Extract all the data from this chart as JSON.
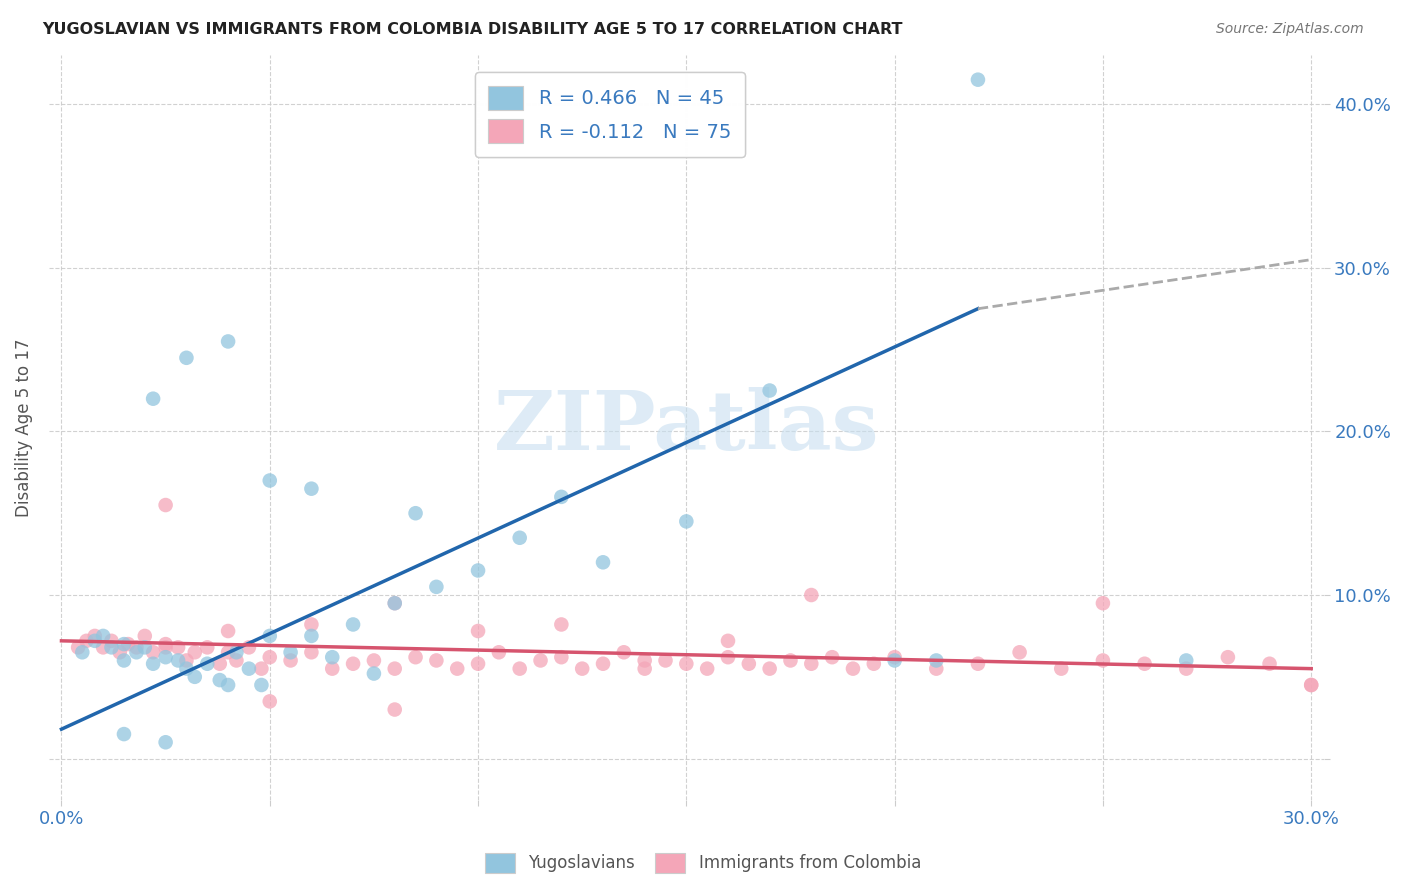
{
  "title": "YUGOSLAVIAN VS IMMIGRANTS FROM COLOMBIA DISABILITY AGE 5 TO 17 CORRELATION CHART",
  "source": "Source: ZipAtlas.com",
  "ylabel": "Disability Age 5 to 17",
  "x_min": 0.0,
  "x_max": 0.3,
  "y_min": -0.025,
  "y_max": 0.43,
  "color_blue": "#92c5de",
  "color_pink": "#f4a6b8",
  "line_blue": "#2166ac",
  "line_pink": "#d6546e",
  "dash_color": "#aaaaaa",
  "R_blue": 0.466,
  "N_blue": 45,
  "R_pink": -0.112,
  "N_pink": 75,
  "watermark_text": "ZIPatlas",
  "watermark_color": "#c8dff0",
  "legend_label_blue": "R = 0.466   N = 45",
  "legend_label_pink": "R = -0.112   N = 75",
  "legend_bottom_blue": "Yugoslavians",
  "legend_bottom_pink": "Immigrants from Colombia",
  "blue_line_x0": 0.0,
  "blue_line_y0": 0.018,
  "blue_line_x1": 0.22,
  "blue_line_y1": 0.275,
  "blue_line_x2": 0.3,
  "blue_line_y2": 0.305,
  "pink_line_x0": 0.0,
  "pink_line_y0": 0.072,
  "pink_line_x1": 0.3,
  "pink_line_y1": 0.055,
  "blue_x": [
    0.005,
    0.008,
    0.01,
    0.012,
    0.015,
    0.015,
    0.018,
    0.02,
    0.022,
    0.025,
    0.028,
    0.03,
    0.032,
    0.035,
    0.038,
    0.04,
    0.042,
    0.045,
    0.048,
    0.05,
    0.055,
    0.06,
    0.065,
    0.07,
    0.075,
    0.08,
    0.085,
    0.09,
    0.1,
    0.11,
    0.12,
    0.022,
    0.03,
    0.04,
    0.05,
    0.06,
    0.13,
    0.15,
    0.17,
    0.2,
    0.21,
    0.22,
    0.27,
    0.015,
    0.025
  ],
  "blue_y": [
    0.065,
    0.072,
    0.075,
    0.068,
    0.07,
    0.06,
    0.065,
    0.068,
    0.058,
    0.062,
    0.06,
    0.055,
    0.05,
    0.058,
    0.048,
    0.045,
    0.065,
    0.055,
    0.045,
    0.075,
    0.065,
    0.075,
    0.062,
    0.082,
    0.052,
    0.095,
    0.15,
    0.105,
    0.115,
    0.135,
    0.16,
    0.22,
    0.245,
    0.255,
    0.17,
    0.165,
    0.12,
    0.145,
    0.225,
    0.06,
    0.06,
    0.415,
    0.06,
    0.015,
    0.01
  ],
  "pink_x": [
    0.004,
    0.006,
    0.008,
    0.01,
    0.012,
    0.014,
    0.016,
    0.018,
    0.02,
    0.022,
    0.025,
    0.028,
    0.03,
    0.032,
    0.035,
    0.038,
    0.04,
    0.042,
    0.045,
    0.048,
    0.05,
    0.055,
    0.06,
    0.065,
    0.07,
    0.075,
    0.08,
    0.085,
    0.09,
    0.095,
    0.1,
    0.105,
    0.11,
    0.115,
    0.12,
    0.125,
    0.13,
    0.135,
    0.14,
    0.145,
    0.15,
    0.155,
    0.16,
    0.165,
    0.17,
    0.175,
    0.18,
    0.185,
    0.19,
    0.195,
    0.2,
    0.21,
    0.22,
    0.23,
    0.24,
    0.25,
    0.26,
    0.27,
    0.28,
    0.29,
    0.3,
    0.025,
    0.04,
    0.06,
    0.08,
    0.1,
    0.12,
    0.14,
    0.16,
    0.18,
    0.025,
    0.05,
    0.08,
    0.3,
    0.25
  ],
  "pink_y": [
    0.068,
    0.072,
    0.075,
    0.068,
    0.072,
    0.065,
    0.07,
    0.068,
    0.075,
    0.065,
    0.07,
    0.068,
    0.06,
    0.065,
    0.068,
    0.058,
    0.065,
    0.06,
    0.068,
    0.055,
    0.062,
    0.06,
    0.065,
    0.055,
    0.058,
    0.06,
    0.055,
    0.062,
    0.06,
    0.055,
    0.058,
    0.065,
    0.055,
    0.06,
    0.062,
    0.055,
    0.058,
    0.065,
    0.055,
    0.06,
    0.058,
    0.055,
    0.062,
    0.058,
    0.055,
    0.06,
    0.058,
    0.062,
    0.055,
    0.058,
    0.062,
    0.055,
    0.058,
    0.065,
    0.055,
    0.06,
    0.058,
    0.055,
    0.062,
    0.058,
    0.045,
    0.155,
    0.078,
    0.082,
    0.095,
    0.078,
    0.082,
    0.06,
    0.072,
    0.1,
    0.068,
    0.035,
    0.03,
    0.045,
    0.095
  ]
}
